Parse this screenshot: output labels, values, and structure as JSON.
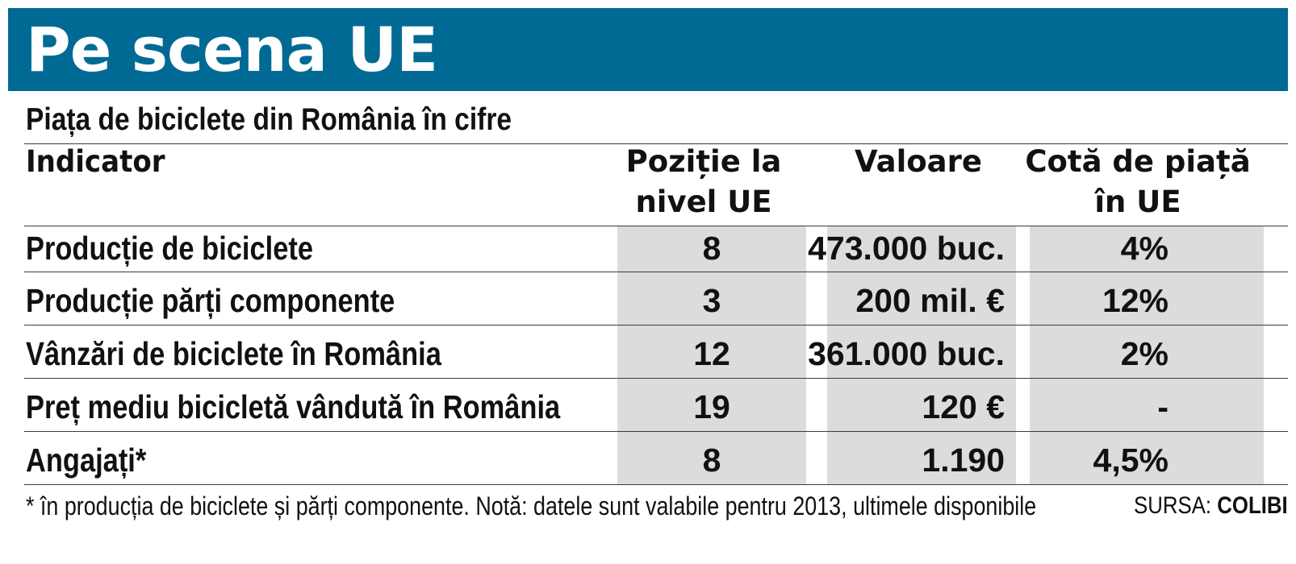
{
  "header": {
    "title": "Pe scena UE",
    "background_color": "#006a94"
  },
  "subtitle": "Piața de biciclete din România în cifre",
  "table": {
    "columns": [
      {
        "line1": "Indicator",
        "line2": ""
      },
      {
        "line1": "Poziție la",
        "line2": "nivel UE"
      },
      {
        "line1": "Valoare",
        "line2": ""
      },
      {
        "line1": "Cotă de piață",
        "line2": "în UE"
      }
    ],
    "rows": [
      {
        "indicator": "Producție de biciclete",
        "pozitie": "8",
        "valoare": "473.000 buc.",
        "cota": "4%"
      },
      {
        "indicator": "Producție părți componente",
        "pozitie": "3",
        "valoare": "200 mil. €",
        "cota": "12%"
      },
      {
        "indicator": "Vânzări de biciclete în România",
        "pozitie": "12",
        "valoare": "361.000 buc.",
        "cota": "2%"
      },
      {
        "indicator": "Preț mediu bicicletă vândută în România",
        "pozitie": "19",
        "valoare": "120 €",
        "cota": "-"
      },
      {
        "indicator": "Angajați*",
        "pozitie": "8",
        "valoare": "1.190",
        "cota": "4,5%"
      }
    ],
    "shade_color": "#dcdcdc"
  },
  "footnote": "* în producția de biciclete și părți componente. Notă: datele sunt valabile pentru 2013, ultimele disponibile",
  "source": {
    "label": "SURSA:",
    "name": "COLIBI"
  }
}
